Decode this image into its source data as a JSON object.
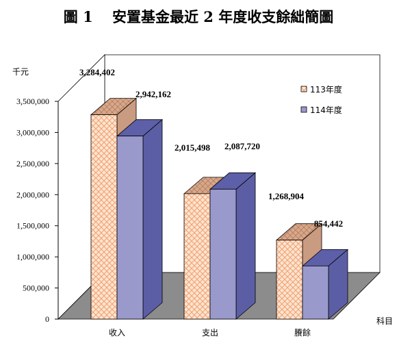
{
  "chart_data": {
    "type": "bar",
    "title": "圖 1　 安置基金最近 2 年度收支餘絀簡圖",
    "ylabel": "千元",
    "xlabel": "科目",
    "categories": [
      "收入",
      "支出",
      "賸餘"
    ],
    "series": [
      {
        "name": "113年度",
        "values": [
          3284402,
          2015498,
          1268904
        ],
        "labels": [
          "3,284,402",
          "2,015,498",
          "1,268,904"
        ]
      },
      {
        "name": "114年度",
        "values": [
          2942162,
          2087720,
          854442
        ],
        "labels": [
          "2,942,162",
          "2,087,720",
          "854,442"
        ]
      }
    ],
    "ylim": [
      0,
      3500000
    ],
    "yticks": [
      0,
      500000,
      1000000,
      1500000,
      2000000,
      2500000,
      3000000,
      3500000
    ],
    "ytick_labels": [
      "0",
      "500,000",
      "1,000,000",
      "1,500,000",
      "2,000,000",
      "2,500,000",
      "3,000,000",
      "3,500,000"
    ],
    "grid": false,
    "legend_position": "right",
    "colors": {
      "series1_fill": "#fde4cf",
      "series1_pattern": "#f0a070",
      "series1_top": "#d9a88a",
      "series1_side": "#c99b80",
      "series2_front": "#9999cc",
      "series2_top": "#5d5fa8",
      "series2_side": "#5c5ea5",
      "floor": "#8c8c8c"
    }
  }
}
